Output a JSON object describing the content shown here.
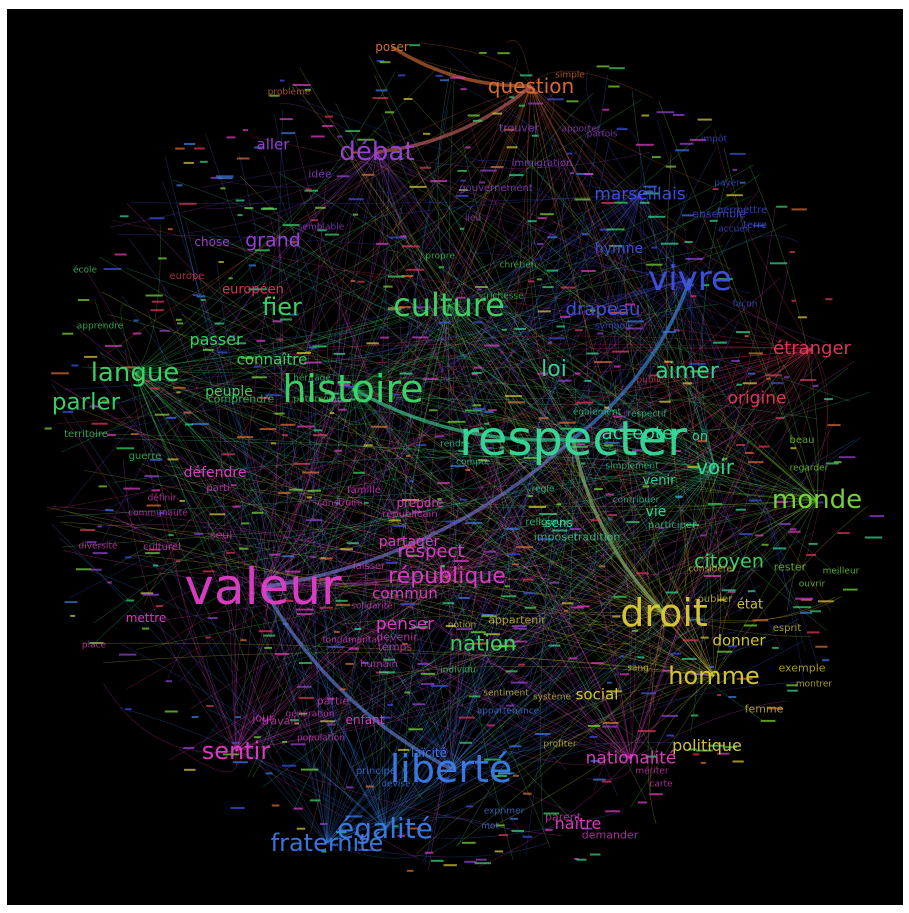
{
  "colors": {
    "purple": "#9a45d8",
    "orange": "#e0713a",
    "blue": "#4052e6",
    "teal": "#37dc9a",
    "green": "#3fd96a",
    "lime": "#7cdc3a",
    "red": "#e23a5c",
    "magenta": "#e23fc8",
    "yellow": "#dccd3a",
    "azure": "#3d7de8"
  },
  "words": [
    {
      "text": "valeur",
      "color": "magenta",
      "size": 50
    },
    {
      "text": "respecter",
      "color": "teal",
      "size": 48
    },
    {
      "text": "histoire",
      "color": "green",
      "size": 38
    },
    {
      "text": "liberté",
      "color": "azure",
      "size": 38
    },
    {
      "text": "droit",
      "color": "yellow",
      "size": 38
    },
    {
      "text": "vivre",
      "color": "blue",
      "size": 34
    },
    {
      "text": "culture",
      "color": "green",
      "size": 32
    },
    {
      "text": "égalité",
      "color": "azure",
      "size": 28
    },
    {
      "text": "débat",
      "color": "purple",
      "size": 26
    },
    {
      "text": "monde",
      "color": "lime",
      "size": 26
    },
    {
      "text": "langue",
      "color": "green",
      "size": 26
    },
    {
      "text": "fraternité",
      "color": "azure",
      "size": 24
    },
    {
      "text": "république",
      "color": "magenta",
      "size": 22
    },
    {
      "text": "sentir",
      "color": "magenta",
      "size": 24
    },
    {
      "text": "homme",
      "color": "yellow",
      "size": 24
    },
    {
      "text": "fier",
      "color": "green",
      "size": 24
    },
    {
      "text": "parler",
      "color": "green",
      "size": 23
    },
    {
      "text": "nation",
      "color": "green",
      "size": 21
    },
    {
      "text": "aimer",
      "color": "teal",
      "size": 22
    },
    {
      "text": "loi",
      "color": "teal",
      "size": 22
    },
    {
      "text": "question",
      "color": "orange",
      "size": 20
    },
    {
      "text": "citoyen",
      "color": "green",
      "size": 19
    },
    {
      "text": "voir",
      "color": "teal",
      "size": 20
    },
    {
      "text": "accepter",
      "color": "teal",
      "size": 18
    },
    {
      "text": "drapeau",
      "color": "blue",
      "size": 18
    },
    {
      "text": "marseillais",
      "color": "blue",
      "size": 17
    },
    {
      "text": "grand",
      "color": "purple",
      "size": 19
    },
    {
      "text": "respect",
      "color": "magenta",
      "size": 18
    },
    {
      "text": "étranger",
      "color": "red",
      "size": 18
    },
    {
      "text": "origine",
      "color": "red",
      "size": 17
    },
    {
      "text": "nationalité",
      "color": "magenta",
      "size": 17
    },
    {
      "text": "politique",
      "color": "yellow",
      "size": 16
    },
    {
      "text": "penser",
      "color": "magenta",
      "size": 17
    },
    {
      "text": "naître",
      "color": "magenta",
      "size": 16
    },
    {
      "text": "passer",
      "color": "green",
      "size": 16
    },
    {
      "text": "connaître",
      "color": "green",
      "size": 15
    },
    {
      "text": "commun",
      "color": "magenta",
      "size": 15
    },
    {
      "text": "aller",
      "color": "purple",
      "size": 15
    },
    {
      "text": "donner",
      "color": "yellow",
      "size": 15
    },
    {
      "text": "social",
      "color": "yellow",
      "size": 15
    },
    {
      "text": "défendre",
      "color": "magenta",
      "size": 14
    },
    {
      "text": "partager",
      "color": "magenta",
      "size": 14
    },
    {
      "text": "peuple",
      "color": "green",
      "size": 14
    },
    {
      "text": "hymne",
      "color": "blue",
      "size": 14
    },
    {
      "text": "européen",
      "color": "red",
      "size": 13
    },
    {
      "text": "vie",
      "color": "teal",
      "size": 14
    },
    {
      "text": "venir",
      "color": "teal",
      "size": 13
    },
    {
      "text": "état",
      "color": "yellow",
      "size": 13
    },
    {
      "text": "poser",
      "color": "orange",
      "size": 12
    },
    {
      "text": "chose",
      "color": "purple",
      "size": 12
    },
    {
      "text": "enfant",
      "color": "magenta",
      "size": 12
    },
    {
      "text": "prendre",
      "color": "magenta",
      "size": 12
    },
    {
      "text": "mettre",
      "color": "magenta",
      "size": 12
    },
    {
      "text": "trouver",
      "color": "purple",
      "size": 11
    },
    {
      "text": "sens",
      "color": "teal",
      "size": 12
    },
    {
      "text": "rester",
      "color": "lime",
      "size": 11
    },
    {
      "text": "idée",
      "color": "purple",
      "size": 11
    },
    {
      "text": "gouvernement",
      "color": "purple",
      "size": 10
    },
    {
      "text": "immigration",
      "color": "purple",
      "size": 10
    },
    {
      "text": "beau",
      "color": "lime",
      "size": 10
    },
    {
      "text": "on",
      "color": "teal",
      "size": 13
    },
    {
      "text": "terre",
      "color": "blue",
      "size": 10
    },
    {
      "text": "payer",
      "color": "blue",
      "size": 9
    },
    {
      "text": "ensemble",
      "color": "blue",
      "size": 11
    },
    {
      "text": "permettre",
      "color": "blue",
      "size": 10
    },
    {
      "text": "symbole",
      "color": "blue",
      "size": 9
    },
    {
      "text": "chrétien",
      "color": "green",
      "size": 9
    },
    {
      "text": "richesse",
      "color": "green",
      "size": 9
    },
    {
      "text": "propre",
      "color": "green",
      "size": 9
    },
    {
      "text": "école",
      "color": "green",
      "size": 9
    },
    {
      "text": "apprendre",
      "color": "green",
      "size": 9
    },
    {
      "text": "territoire",
      "color": "green",
      "size": 10
    },
    {
      "text": "guerre",
      "color": "green",
      "size": 10
    },
    {
      "text": "europe",
      "color": "red",
      "size": 10
    },
    {
      "text": "public",
      "color": "red",
      "size": 9
    },
    {
      "text": "semblable",
      "color": "purple",
      "size": 9
    },
    {
      "text": "lieu",
      "color": "purple",
      "size": 9
    },
    {
      "text": "parti",
      "color": "magenta",
      "size": 10
    },
    {
      "text": "culturel",
      "color": "magenta",
      "size": 10
    },
    {
      "text": "seul",
      "color": "magenta",
      "size": 11
    },
    {
      "text": "diversité",
      "color": "magenta",
      "size": 9
    },
    {
      "text": "communauté",
      "color": "magenta",
      "size": 9
    },
    {
      "text": "définir",
      "color": "magenta",
      "size": 9
    },
    {
      "text": "famille",
      "color": "magenta",
      "size": 10
    },
    {
      "text": "construire",
      "color": "magenta",
      "size": 9
    },
    {
      "text": "républicain",
      "color": "magenta",
      "size": 10
    },
    {
      "text": "laisser",
      "color": "magenta",
      "size": 10
    },
    {
      "text": "devenir",
      "color": "magenta",
      "size": 11
    },
    {
      "text": "temps",
      "color": "magenta",
      "size": 11
    },
    {
      "text": "humain",
      "color": "magenta",
      "size": 10
    },
    {
      "text": "partie",
      "color": "magenta",
      "size": 11
    },
    {
      "text": "jour",
      "color": "magenta",
      "size": 11
    },
    {
      "text": "travail",
      "color": "magenta",
      "size": 11
    },
    {
      "text": "génération",
      "color": "magenta",
      "size": 9
    },
    {
      "text": "population",
      "color": "magenta",
      "size": 9
    },
    {
      "text": "place",
      "color": "magenta",
      "size": 9
    },
    {
      "text": "fondamental",
      "color": "magenta",
      "size": 9
    },
    {
      "text": "solidarité",
      "color": "magenta",
      "size": 9
    },
    {
      "text": "individu",
      "color": "green",
      "size": 9
    },
    {
      "text": "appartenir",
      "color": "yellow",
      "size": 11
    },
    {
      "text": "notion",
      "color": "yellow",
      "size": 9
    },
    {
      "text": "sentiment",
      "color": "yellow",
      "size": 9
    },
    {
      "text": "appartenance",
      "color": "azure",
      "size": 9
    },
    {
      "text": "système",
      "color": "yellow",
      "size": 9
    },
    {
      "text": "sang",
      "color": "yellow",
      "size": 9
    },
    {
      "text": "profiter",
      "color": "yellow",
      "size": 9
    },
    {
      "text": "considérer",
      "color": "yellow",
      "size": 9
    },
    {
      "text": "oublier",
      "color": "yellow",
      "size": 10
    },
    {
      "text": "esprit",
      "color": "yellow",
      "size": 10
    },
    {
      "text": "exemple",
      "color": "yellow",
      "size": 11
    },
    {
      "text": "montrer",
      "color": "yellow",
      "size": 9
    },
    {
      "text": "femme",
      "color": "yellow",
      "size": 11
    },
    {
      "text": "carte",
      "color": "magenta",
      "size": 9
    },
    {
      "text": "mériter",
      "color": "magenta",
      "size": 9
    },
    {
      "text": "demander",
      "color": "magenta",
      "size": 11
    },
    {
      "text": "parent",
      "color": "magenta",
      "size": 11
    },
    {
      "text": "mot",
      "color": "azure",
      "size": 9
    },
    {
      "text": "exprimer",
      "color": "azure",
      "size": 9
    },
    {
      "text": "devise",
      "color": "azure",
      "size": 9
    },
    {
      "text": "principe",
      "color": "azure",
      "size": 10
    },
    {
      "text": "laïcité",
      "color": "azure",
      "size": 12
    },
    {
      "text": "tradition",
      "color": "teal",
      "size": 11
    },
    {
      "text": "imposer",
      "color": "teal",
      "size": 11
    },
    {
      "text": "religieux",
      "color": "teal",
      "size": 10
    },
    {
      "text": "participer",
      "color": "teal",
      "size": 10
    },
    {
      "text": "contribuer",
      "color": "teal",
      "size": 9
    },
    {
      "text": "simplement",
      "color": "teal",
      "size": 9
    },
    {
      "text": "règle",
      "color": "teal",
      "size": 9
    },
    {
      "text": "rendre",
      "color": "teal",
      "size": 9
    },
    {
      "text": "compte",
      "color": "teal",
      "size": 9
    },
    {
      "text": "également",
      "color": "teal",
      "size": 9
    },
    {
      "text": "respectif",
      "color": "teal",
      "size": 9
    },
    {
      "text": "comprendre",
      "color": "green",
      "size": 11
    },
    {
      "text": "patrimoine",
      "color": "green",
      "size": 9
    },
    {
      "text": "héritage",
      "color": "green",
      "size": 9
    },
    {
      "text": "ouvrir",
      "color": "lime",
      "size": 9
    },
    {
      "text": "problème",
      "color": "orange",
      "size": 9
    },
    {
      "text": "simple",
      "color": "orange",
      "size": 9
    },
    {
      "text": "apporter",
      "color": "purple",
      "size": 9
    },
    {
      "text": "parfois",
      "color": "purple",
      "size": 9
    },
    {
      "text": "impôt",
      "color": "blue",
      "size": 9
    },
    {
      "text": "accueil",
      "color": "blue",
      "size": 9
    },
    {
      "text": "façon",
      "color": "blue",
      "size": 9
    },
    {
      "text": "regarder",
      "color": "lime",
      "size": 9
    },
    {
      "text": "meilleur",
      "color": "lime",
      "size": 9
    }
  ]
}
